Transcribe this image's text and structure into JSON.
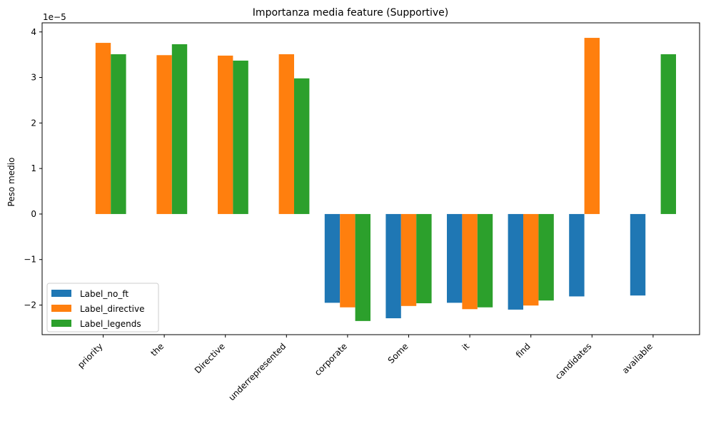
{
  "chart_data": {
    "type": "bar",
    "title": "Importanza media feature (Supportive)",
    "xlabel": "",
    "ylabel": "Peso medio",
    "y_offset_label": "1e−5",
    "ylim": [
      -2.65,
      4.2
    ],
    "yticks": [
      -2,
      -1,
      0,
      1,
      2,
      3,
      4
    ],
    "ytick_labels": [
      "−2",
      "−1",
      "0",
      "1",
      "2",
      "3",
      "4"
    ],
    "grid": false,
    "legend_position": "lower-left",
    "categories": [
      "priority",
      "the",
      "Directive",
      "underrepresented",
      "corporate",
      "Some",
      "it",
      "find",
      "candidates",
      "available"
    ],
    "series": [
      {
        "name": "Label_no_ft",
        "color": "#1f77b4",
        "values": [
          0,
          0,
          0,
          0,
          -1.95,
          -2.29,
          -1.95,
          -2.1,
          -1.81,
          -1.79
        ]
      },
      {
        "name": "Label_directive",
        "color": "#ff7f0e",
        "values": [
          3.76,
          3.49,
          3.48,
          3.51,
          -2.05,
          -2.02,
          -2.09,
          -2.01,
          3.87,
          0
        ]
      },
      {
        "name": "Label_legends",
        "color": "#2ca02c",
        "values": [
          3.51,
          3.73,
          3.37,
          2.98,
          -2.35,
          -1.96,
          -2.05,
          -1.9,
          0,
          3.51
        ]
      }
    ]
  }
}
